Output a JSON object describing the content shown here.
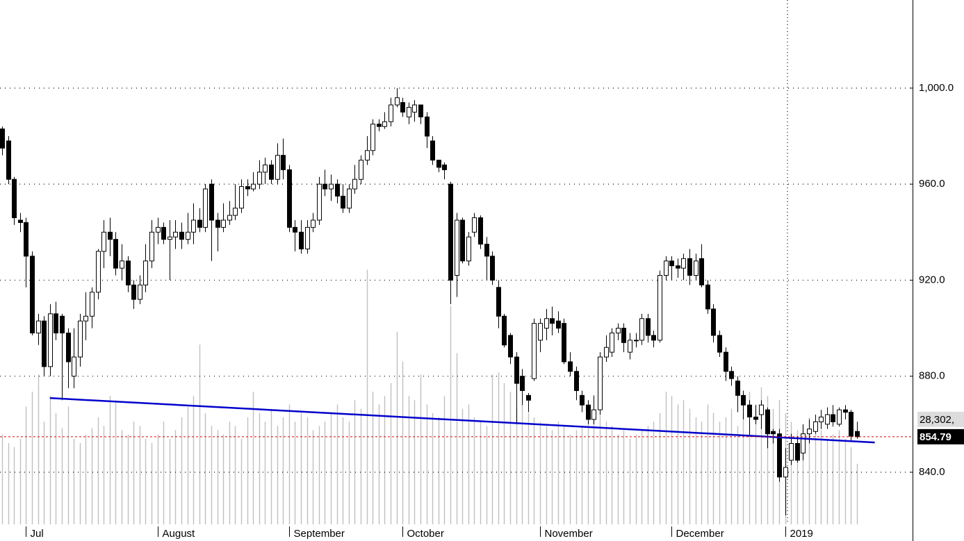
{
  "chart_data": {
    "type": "candlestick",
    "categories": [
      null,
      null,
      null,
      null,
      "Jul",
      null,
      null,
      null,
      null,
      null,
      null,
      null,
      null,
      null,
      null,
      null,
      null,
      null,
      null,
      null,
      null,
      null,
      null,
      null,
      null,
      null,
      "August",
      null,
      null,
      null,
      null,
      null,
      null,
      null,
      null,
      null,
      null,
      null,
      null,
      null,
      null,
      null,
      null,
      null,
      null,
      null,
      null,
      null,
      "September",
      null,
      null,
      null,
      null,
      null,
      null,
      null,
      null,
      null,
      null,
      null,
      null,
      null,
      null,
      null,
      null,
      null,
      null,
      "October",
      null,
      null,
      null,
      null,
      null,
      null,
      null,
      null,
      null,
      null,
      null,
      null,
      null,
      null,
      null,
      null,
      null,
      null,
      null,
      null,
      null,
      null,
      "November",
      null,
      null,
      null,
      null,
      null,
      null,
      null,
      null,
      null,
      null,
      null,
      null,
      null,
      null,
      null,
      null,
      null,
      null,
      null,
      null,
      null,
      "December",
      null,
      null,
      null,
      null,
      null,
      null,
      null,
      null,
      null,
      null,
      null,
      null,
      null,
      null,
      null,
      null,
      null,
      null,
      "2019",
      null,
      null,
      null,
      null,
      null,
      null,
      null,
      null,
      null,
      null,
      null,
      null
    ],
    "open": [
      983,
      978,
      962,
      945,
      944,
      930,
      898,
      903,
      884,
      906,
      905,
      898,
      880,
      888,
      903,
      905,
      915,
      932,
      940,
      937,
      925,
      928,
      918,
      912,
      918,
      928,
      940,
      942,
      937,
      938,
      940,
      937,
      940,
      945,
      942,
      960,
      945,
      942,
      945,
      947,
      950,
      959,
      958,
      960,
      965,
      968,
      962,
      972,
      966,
      942,
      940,
      933,
      942,
      945,
      960,
      958,
      960,
      955,
      950,
      958,
      962,
      970,
      974,
      985,
      984,
      986,
      993,
      994,
      988,
      990,
      993,
      988,
      978,
      970,
      968,
      960,
      922,
      945,
      928,
      940,
      946,
      935,
      930,
      917,
      905,
      897,
      888,
      880,
      872,
      879,
      895,
      900,
      904,
      903,
      902,
      886,
      882,
      872,
      868,
      862,
      866,
      888,
      890,
      898,
      900,
      890,
      895,
      895,
      904,
      897,
      895,
      922,
      928,
      926,
      925,
      929,
      922,
      929,
      918,
      908,
      897,
      890,
      882,
      878,
      872,
      868,
      863,
      864,
      866,
      857,
      856,
      838,
      845,
      852,
      848,
      856,
      857,
      861,
      860,
      864,
      860,
      866,
      865,
      857
    ],
    "high": [
      984,
      980,
      963,
      948,
      946,
      932,
      906,
      905,
      910,
      911,
      906,
      900,
      900,
      906,
      915,
      917,
      933,
      945,
      946,
      940,
      935,
      930,
      920,
      922,
      935,
      945,
      946,
      944,
      945,
      945,
      944,
      948,
      952,
      950,
      960,
      962,
      948,
      952,
      953,
      960,
      962,
      962,
      965,
      970,
      971,
      970,
      977,
      979,
      968,
      945,
      945,
      945,
      948,
      963,
      966,
      964,
      962,
      960,
      960,
      968,
      972,
      980,
      987,
      987,
      990,
      996,
      1000,
      996,
      994,
      995,
      993,
      990,
      980,
      970,
      969,
      961,
      948,
      946,
      940,
      948,
      947,
      938,
      932,
      920,
      906,
      898,
      890,
      883,
      873,
      904,
      904,
      908,
      909,
      907,
      904,
      890,
      884,
      874,
      870,
      872,
      890,
      897,
      900,
      902,
      902,
      898,
      898,
      906,
      906,
      899,
      924,
      930,
      930,
      929,
      931,
      933,
      931,
      935,
      920,
      910,
      899,
      892,
      884,
      880,
      874,
      870,
      868,
      870,
      867,
      858,
      858,
      850,
      856,
      855,
      860,
      862,
      864,
      866,
      867,
      868,
      867,
      868,
      866,
      861
    ],
    "low": [
      972,
      960,
      943,
      940,
      917,
      897,
      893,
      880,
      880,
      895,
      870,
      875,
      875,
      884,
      895,
      900,
      912,
      925,
      930,
      922,
      920,
      915,
      908,
      910,
      915,
      925,
      935,
      935,
      920,
      933,
      933,
      935,
      935,
      940,
      940,
      928,
      932,
      940,
      943,
      945,
      948,
      955,
      957,
      958,
      960,
      960,
      960,
      962,
      940,
      932,
      931,
      931,
      940,
      943,
      955,
      953,
      952,
      948,
      948,
      956,
      960,
      968,
      972,
      982,
      983,
      984,
      992,
      988,
      985,
      986,
      985,
      975,
      968,
      965,
      962,
      910,
      913,
      927,
      926,
      938,
      933,
      920,
      918,
      900,
      892,
      885,
      860,
      868,
      865,
      878,
      890,
      895,
      897,
      898,
      885,
      880,
      870,
      865,
      860,
      860,
      864,
      886,
      888,
      895,
      890,
      887,
      892,
      893,
      894,
      892,
      894,
      920,
      920,
      921,
      920,
      918,
      920,
      917,
      906,
      894,
      888,
      878,
      876,
      865,
      862,
      855,
      860,
      858,
      850,
      852,
      836,
      822,
      843,
      844,
      845,
      852,
      856,
      858,
      858,
      859,
      859,
      862,
      853,
      854
    ],
    "close": [
      975,
      962,
      946,
      944,
      930,
      898,
      903,
      884,
      906,
      898,
      898,
      886,
      888,
      903,
      905,
      915,
      932,
      940,
      937,
      925,
      928,
      918,
      912,
      918,
      928,
      940,
      942,
      937,
      938,
      940,
      937,
      940,
      945,
      942,
      958,
      945,
      942,
      945,
      947,
      950,
      959,
      958,
      960,
      965,
      968,
      962,
      972,
      966,
      942,
      940,
      933,
      942,
      945,
      960,
      958,
      960,
      955,
      950,
      958,
      962,
      970,
      974,
      985,
      984,
      986,
      993,
      996,
      990,
      992,
      993,
      988,
      980,
      970,
      967,
      966,
      920,
      945,
      928,
      938,
      946,
      935,
      930,
      920,
      905,
      893,
      888,
      877,
      874,
      870,
      902,
      902,
      904,
      902,
      900,
      886,
      882,
      874,
      868,
      862,
      866,
      888,
      892,
      898,
      900,
      894,
      895,
      895,
      904,
      897,
      895,
      922,
      928,
      926,
      925,
      929,
      922,
      928,
      918,
      908,
      897,
      890,
      882,
      879,
      872,
      868,
      863,
      862,
      868,
      856,
      856,
      838,
      842,
      852,
      845,
      856,
      858,
      861,
      863,
      864,
      861,
      866,
      865,
      855,
      854.79
    ],
    "up_color": "#ffffff",
    "down_color": "#000000",
    "volume": {
      "axis": "y2",
      "color": "#c0c0c0",
      "values": [
        42000,
        38000,
        36000,
        40000,
        55000,
        62000,
        70000,
        48000,
        60000,
        52000,
        45000,
        55000,
        40000,
        38000,
        42000,
        45000,
        50000,
        46000,
        60000,
        58000,
        44000,
        42000,
        48000,
        46000,
        40000,
        38000,
        42000,
        48000,
        40000,
        44000,
        50000,
        55000,
        60000,
        84000,
        52000,
        46000,
        44000,
        42000,
        48000,
        46000,
        40000,
        50000,
        62000,
        52000,
        48000,
        54000,
        46000,
        50000,
        56000,
        48000,
        52000,
        50000,
        44000,
        46000,
        48000,
        52000,
        56000,
        50000,
        48000,
        58000,
        54000,
        119000,
        62000,
        56000,
        60000,
        66000,
        90000,
        76000,
        60000,
        58000,
        70000,
        56000,
        52000,
        50000,
        60000,
        102000,
        80000,
        54000,
        56000,
        50000,
        48000,
        46000,
        70000,
        71000,
        66000,
        62000,
        54000,
        56000,
        52000,
        50000,
        48000,
        46000,
        44000,
        48000,
        46000,
        42000,
        44000,
        46000,
        48000,
        50000,
        52000,
        48000,
        46000,
        42000,
        44000,
        40000,
        42000,
        44000,
        46000,
        48000,
        52000,
        62000,
        60000,
        56000,
        58000,
        54000,
        50000,
        48000,
        56000,
        52000,
        48000,
        50000,
        54000,
        46000,
        52000,
        62000,
        56000,
        64000,
        60000,
        54000,
        58000,
        52000,
        48000,
        44000,
        46000,
        50000,
        46000,
        44000,
        40000,
        42000,
        44000,
        40000,
        36000,
        28302
      ]
    },
    "volume_label": "28,302,",
    "ylim": [
      818.3,
      1036.7
    ],
    "yticks": [
      {
        "value": 840,
        "label": "840.0"
      },
      {
        "value": 880,
        "label": "880.0"
      },
      {
        "value": 920,
        "label": "920.0"
      },
      {
        "value": 960,
        "label": "960.0"
      },
      {
        "value": 1000,
        "label": "1,000.0"
      }
    ],
    "y2lim": [
      0,
      245000
    ],
    "grid": true,
    "trendline": {
      "x": [
        8,
        146
      ],
      "y": [
        870.9,
        852.4
      ],
      "color": "#0000cc"
    },
    "last_price_color": "#e00000"
  }
}
